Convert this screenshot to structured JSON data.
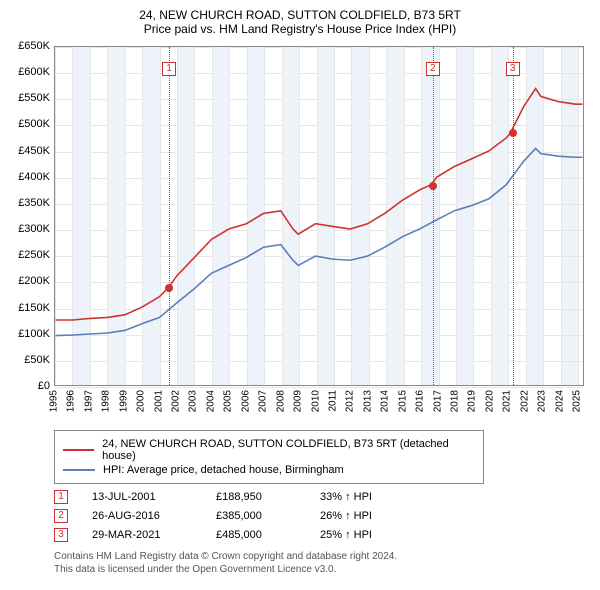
{
  "title": "24, NEW CHURCH ROAD, SUTTON COLDFIELD, B73 5RT",
  "subtitle": "Price paid vs. HM Land Registry's House Price Index (HPI)",
  "chart": {
    "type": "line",
    "background_color": "#ffffff",
    "grid_color": "#e6e6e6",
    "border_color": "#888888",
    "band_color": "#eef3f9",
    "xlim": [
      1995,
      2025.4
    ],
    "ylim": [
      0,
      650
    ],
    "yticks": [
      0,
      50,
      100,
      150,
      200,
      250,
      300,
      350,
      400,
      450,
      500,
      550,
      600,
      650
    ],
    "ytick_labels": [
      "£0",
      "£50K",
      "£100K",
      "£150K",
      "£200K",
      "£250K",
      "£300K",
      "£350K",
      "£400K",
      "£450K",
      "£500K",
      "£550K",
      "£600K",
      "£650K"
    ],
    "xticks": [
      1995,
      1996,
      1997,
      1998,
      1999,
      2000,
      2001,
      2002,
      2003,
      2004,
      2005,
      2006,
      2007,
      2008,
      2009,
      2010,
      2011,
      2012,
      2013,
      2014,
      2015,
      2016,
      2017,
      2018,
      2019,
      2020,
      2021,
      2022,
      2023,
      2024,
      2025
    ],
    "label_fontsize": 11,
    "line_width": 1.6,
    "series": [
      {
        "name": "property",
        "color": "#d03030",
        "points": [
          [
            1995,
            125
          ],
          [
            1996,
            125
          ],
          [
            1997,
            128
          ],
          [
            1998,
            130
          ],
          [
            1999,
            135
          ],
          [
            2000,
            150
          ],
          [
            2001,
            170
          ],
          [
            2001.55,
            188.95
          ],
          [
            2002,
            210
          ],
          [
            2003,
            245
          ],
          [
            2004,
            280
          ],
          [
            2005,
            300
          ],
          [
            2006,
            310
          ],
          [
            2007,
            330
          ],
          [
            2008,
            335
          ],
          [
            2008.7,
            300
          ],
          [
            2009,
            290
          ],
          [
            2010,
            310
          ],
          [
            2011,
            305
          ],
          [
            2012,
            300
          ],
          [
            2013,
            310
          ],
          [
            2014,
            330
          ],
          [
            2015,
            355
          ],
          [
            2016,
            375
          ],
          [
            2016.67,
            385
          ],
          [
            2017,
            400
          ],
          [
            2018,
            420
          ],
          [
            2019,
            435
          ],
          [
            2020,
            450
          ],
          [
            2021,
            475
          ],
          [
            2021.25,
            485
          ],
          [
            2022,
            535
          ],
          [
            2022.7,
            570
          ],
          [
            2023,
            555
          ],
          [
            2024,
            545
          ],
          [
            2025,
            540
          ],
          [
            2025.4,
            540
          ]
        ]
      },
      {
        "name": "hpi",
        "color": "#5b7fb8",
        "points": [
          [
            1995,
            95
          ],
          [
            1996,
            96
          ],
          [
            1997,
            98
          ],
          [
            1998,
            100
          ],
          [
            1999,
            105
          ],
          [
            2000,
            118
          ],
          [
            2001,
            130
          ],
          [
            2002,
            158
          ],
          [
            2003,
            185
          ],
          [
            2004,
            215
          ],
          [
            2005,
            230
          ],
          [
            2006,
            245
          ],
          [
            2007,
            265
          ],
          [
            2008,
            270
          ],
          [
            2008.7,
            240
          ],
          [
            2009,
            230
          ],
          [
            2010,
            248
          ],
          [
            2011,
            242
          ],
          [
            2012,
            240
          ],
          [
            2013,
            248
          ],
          [
            2014,
            265
          ],
          [
            2015,
            285
          ],
          [
            2016,
            300
          ],
          [
            2017,
            318
          ],
          [
            2018,
            335
          ],
          [
            2019,
            345
          ],
          [
            2020,
            358
          ],
          [
            2021,
            385
          ],
          [
            2022,
            430
          ],
          [
            2022.7,
            455
          ],
          [
            2023,
            445
          ],
          [
            2024,
            440
          ],
          [
            2025,
            438
          ],
          [
            2025.4,
            438
          ]
        ]
      }
    ],
    "markers": [
      {
        "n": "1",
        "x": 2001.55,
        "y": 188.95,
        "box_y": 40
      },
      {
        "n": "2",
        "x": 2016.67,
        "y": 385,
        "box_y": 40
      },
      {
        "n": "3",
        "x": 2021.25,
        "y": 485,
        "box_y": 40
      }
    ],
    "marker_color": "#d03030"
  },
  "legend": [
    {
      "color": "#d03030",
      "label": "24, NEW CHURCH ROAD, SUTTON COLDFIELD, B73 5RT (detached house)"
    },
    {
      "color": "#5b7fb8",
      "label": "HPI: Average price, detached house, Birmingham"
    }
  ],
  "sales": [
    {
      "n": "1",
      "date": "13-JUL-2001",
      "price": "£188,950",
      "pct": "33% ↑ HPI"
    },
    {
      "n": "2",
      "date": "26-AUG-2016",
      "price": "£385,000",
      "pct": "26% ↑ HPI"
    },
    {
      "n": "3",
      "date": "29-MAR-2021",
      "price": "£485,000",
      "pct": "25% ↑ HPI"
    }
  ],
  "footer": {
    "line1": "Contains HM Land Registry data © Crown copyright and database right 2024.",
    "line2": "This data is licensed under the Open Government Licence v3.0."
  }
}
